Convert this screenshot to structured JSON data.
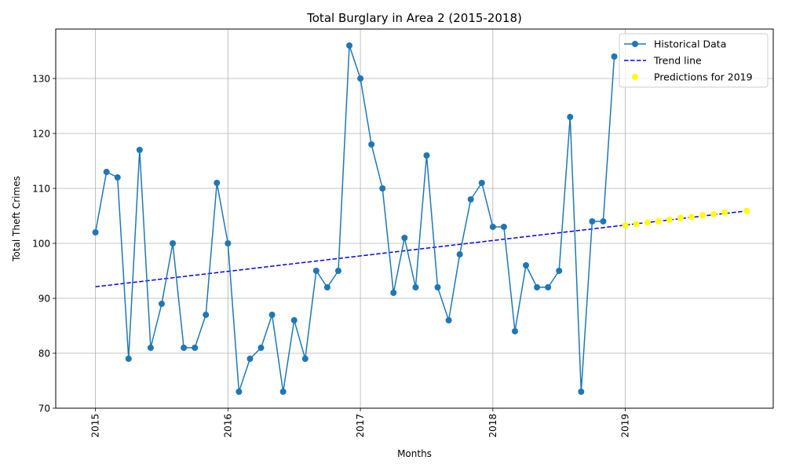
{
  "chart_data": {
    "type": "line",
    "title": "Total Burglary in Area 2 (2015-2018)",
    "xlabel": "Months",
    "ylabel": "Total Theft Crimes",
    "x_start": "2015-01",
    "x_ticks": [
      "2015",
      "2016",
      "2017",
      "2018",
      "2019"
    ],
    "y_ticks": [
      70,
      80,
      90,
      100,
      110,
      120,
      130
    ],
    "xlim": [
      "2014-09",
      "2020-02"
    ],
    "ylim": [
      70,
      139
    ],
    "grid": true,
    "legend_position": "top-right",
    "series": [
      {
        "name": "Historical Data",
        "kind": "line-marker",
        "color": "#1f77b4",
        "months": [
          "2015-01",
          "2015-02",
          "2015-03",
          "2015-04",
          "2015-05",
          "2015-06",
          "2015-07",
          "2015-08",
          "2015-09",
          "2015-10",
          "2015-11",
          "2015-12",
          "2016-01",
          "2016-02",
          "2016-03",
          "2016-04",
          "2016-05",
          "2016-06",
          "2016-07",
          "2016-08",
          "2016-09",
          "2016-10",
          "2016-11",
          "2016-12",
          "2017-01",
          "2017-02",
          "2017-03",
          "2017-04",
          "2017-05",
          "2017-06",
          "2017-07",
          "2017-08",
          "2017-09",
          "2017-10",
          "2017-11",
          "2017-12",
          "2018-01",
          "2018-02",
          "2018-03",
          "2018-04",
          "2018-05",
          "2018-06",
          "2018-07",
          "2018-08",
          "2018-09",
          "2018-10",
          "2018-11",
          "2018-12"
        ],
        "values": [
          102,
          113,
          112,
          79,
          117,
          81,
          89,
          100,
          81,
          81,
          87,
          111,
          100,
          73,
          79,
          81,
          87,
          73,
          86,
          79,
          95,
          92,
          95,
          136,
          130,
          118,
          110,
          91,
          101,
          92,
          116,
          92,
          86,
          98,
          108,
          111,
          103,
          103,
          84,
          96,
          92,
          92,
          95,
          123,
          73,
          104,
          104,
          134
        ]
      },
      {
        "name": "Trend line",
        "kind": "dashed-line",
        "color": "#0000ff",
        "months": [
          "2015-01",
          "2019-12"
        ],
        "values": [
          92.1,
          105.9
        ]
      },
      {
        "name": "Predictions for 2019",
        "kind": "scatter",
        "color": "#ffff00",
        "months": [
          "2019-01",
          "2019-02",
          "2019-03",
          "2019-04",
          "2019-05",
          "2019-06",
          "2019-07",
          "2019-08",
          "2019-09",
          "2019-10",
          "2019-12",
          "2019-12"
        ],
        "values": [
          103.3,
          103.5,
          103.8,
          104.0,
          104.3,
          104.6,
          104.8,
          105.1,
          105.3,
          105.6,
          105.9,
          105.9
        ]
      }
    ]
  }
}
